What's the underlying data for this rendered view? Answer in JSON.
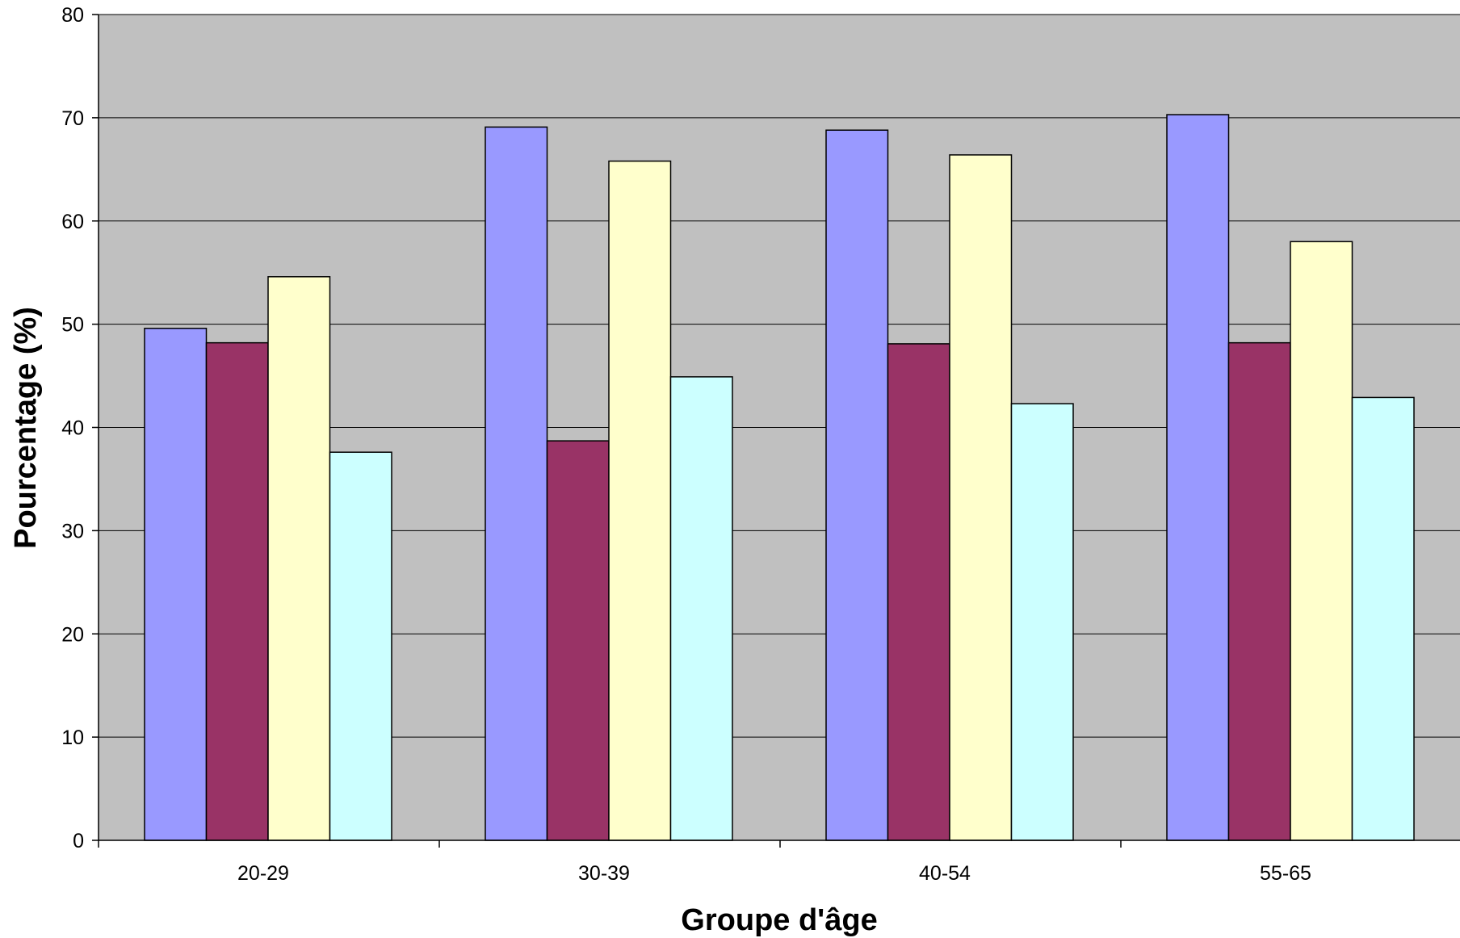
{
  "chart_data": {
    "type": "bar",
    "title": "",
    "xlabel": "Groupe d'âge",
    "ylabel": "Pourcentage (%)",
    "ylim": [
      0,
      80
    ],
    "yticks": [
      0,
      10,
      20,
      30,
      40,
      50,
      60,
      70,
      80
    ],
    "grid": true,
    "legend": "none",
    "plot_background": "#C0C0C0",
    "categories": [
      "20-29",
      "30-39",
      "40-54",
      "55-65"
    ],
    "series": [
      {
        "color": "#9999FF",
        "values": [
          49.6,
          69.1,
          68.8,
          70.3
        ]
      },
      {
        "color": "#993366",
        "values": [
          48.2,
          38.7,
          48.1,
          48.2
        ]
      },
      {
        "color": "#FFFFCC",
        "values": [
          54.6,
          65.8,
          66.4,
          58.0
        ]
      },
      {
        "color": "#CCFFFF",
        "values": [
          37.6,
          44.9,
          42.3,
          42.9
        ]
      }
    ]
  }
}
